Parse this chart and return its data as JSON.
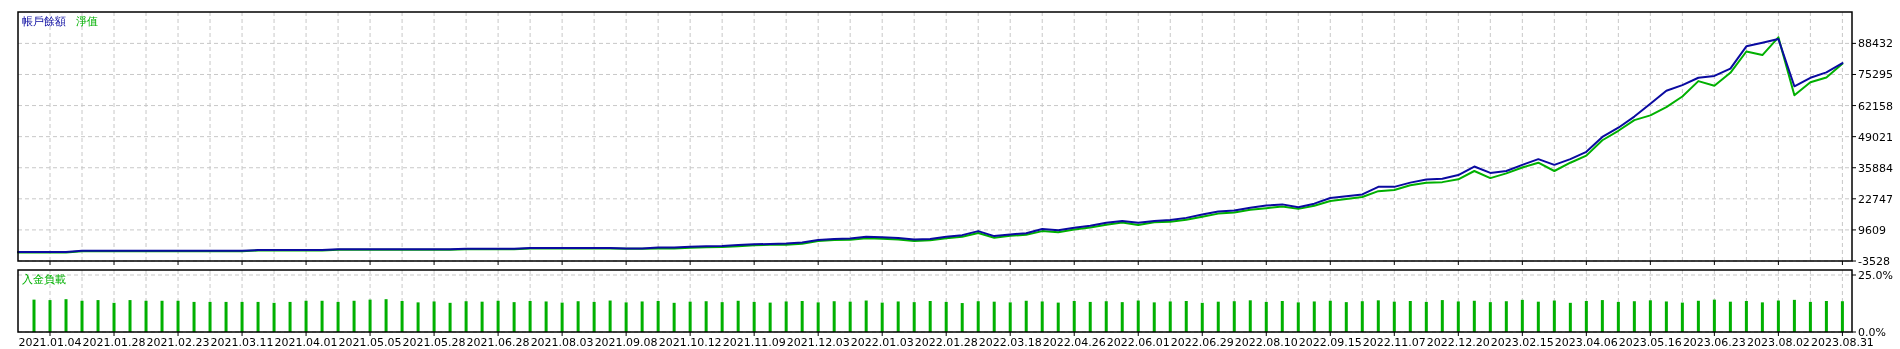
{
  "chart_data": [
    {
      "type": "line",
      "tick_labels": "y",
      "grid": true,
      "legend": "top left",
      "categories": [
        null,
        null,
        "2021.01.04",
        null,
        null,
        null,
        "2021.01.28",
        null,
        null,
        null,
        "2021.02.23",
        null,
        null,
        null,
        "2021.03.11",
        null,
        null,
        null,
        "2021.04.01",
        null,
        null,
        null,
        "2021.05.05",
        null,
        null,
        null,
        "2021.05.28",
        null,
        null,
        null,
        "2021.06.28",
        null,
        null,
        null,
        "2021.08.03",
        null,
        null,
        null,
        "2021.09.08",
        null,
        null,
        null,
        "2021.10.12",
        null,
        null,
        null,
        "2021.11.09",
        null,
        null,
        null,
        "2021.12.03",
        null,
        null,
        null,
        "2022.01.03",
        null,
        null,
        null,
        "2022.01.28",
        null,
        null,
        null,
        "2022.03.18",
        null,
        null,
        null,
        "2022.04.26",
        null,
        null,
        null,
        "2022.06.01",
        null,
        null,
        null,
        "2022.06.29",
        null,
        null,
        null,
        "2022.08.10",
        null,
        null,
        null,
        "2022.09.15",
        null,
        null,
        null,
        "2022.11.07",
        null,
        null,
        null,
        "2022.12.20",
        null,
        null,
        null,
        "2023.02.15",
        null,
        null,
        null,
        "2023.04.06",
        null,
        null,
        null,
        "2023.05.16",
        null,
        null,
        null,
        "2023.06.23",
        null,
        null,
        null,
        "2023.08.02",
        null,
        null,
        null,
        "2023.08.31"
      ],
      "ylim": [
        -3528,
        101700
      ],
      "yticks": [
        -3528,
        9609,
        22747,
        35884,
        49021,
        62158,
        75295,
        88432
      ],
      "series": [
        {
          "name": "帳戶餘額",
          "color": "#0a0aa0",
          "values": [
            300,
            300,
            300,
            300,
            800,
            800,
            800,
            800,
            800,
            800,
            800,
            800,
            800,
            800,
            800,
            1100,
            1100,
            1100,
            1100,
            1100,
            1400,
            1400,
            1400,
            1400,
            1400,
            1400,
            1400,
            1400,
            1600,
            1600,
            1600,
            1600,
            2000,
            2000,
            2000,
            2000,
            2000,
            2000,
            1800,
            1800,
            2200,
            2200,
            2500,
            2700,
            2800,
            3200,
            3500,
            3700,
            3900,
            4300,
            5300,
            5800,
            6000,
            6700,
            6500,
            6200,
            5600,
            5800,
            6700,
            7400,
            9100,
            7000,
            7700,
            8200,
            10000,
            9500,
            10500,
            11400,
            12600,
            13400,
            12600,
            13400,
            13800,
            14700,
            16100,
            17400,
            17800,
            19000,
            19900,
            20400,
            19200,
            20700,
            23100,
            23800,
            24600,
            27800,
            27800,
            29600,
            30900,
            31200,
            32800,
            36400,
            33700,
            34500,
            37100,
            39500,
            37100,
            39500,
            42600,
            48900,
            52800,
            57500,
            62900,
            68400,
            70800,
            73900,
            74700,
            77800,
            87200,
            88700,
            90300,
            70300,
            73900,
            76200,
            80100
          ]
        },
        {
          "name": "淨值",
          "color": "#00b000",
          "values": [
            100,
            100,
            100,
            100,
            600,
            600,
            600,
            600,
            600,
            600,
            600,
            600,
            600,
            600,
            600,
            900,
            900,
            900,
            900,
            900,
            1200,
            1200,
            1200,
            1200,
            1200,
            1200,
            1200,
            1200,
            1400,
            1400,
            1400,
            1400,
            1800,
            1800,
            1800,
            1800,
            1800,
            1800,
            1600,
            1600,
            1800,
            1800,
            2100,
            2300,
            2400,
            2700,
            3100,
            3300,
            3300,
            3800,
            4900,
            5300,
            5400,
            6100,
            5900,
            5600,
            4900,
            5200,
            6100,
            6700,
            8300,
            6300,
            7100,
            7600,
            9100,
            8600,
            9800,
            10600,
            11800,
            12700,
            11700,
            12800,
            13100,
            13900,
            15200,
            16500,
            17000,
            18100,
            18800,
            19500,
            18500,
            19800,
            21800,
            22700,
            23500,
            26000,
            26500,
            28500,
            29500,
            29800,
            31000,
            34500,
            31500,
            33500,
            36000,
            38000,
            34500,
            38000,
            41000,
            47500,
            51500,
            56000,
            58000,
            61500,
            66000,
            72500,
            70500,
            76000,
            85000,
            83500,
            91000,
            66500,
            72000,
            74000,
            79800
          ]
        }
      ]
    },
    {
      "type": "bar",
      "grid": true,
      "legend": "top left",
      "categories": [
        null,
        null,
        "2021.01.04",
        null,
        null,
        null,
        "2021.01.28",
        null,
        null,
        null,
        "2021.02.23",
        null,
        null,
        null,
        "2021.03.11",
        null,
        null,
        null,
        "2021.04.01",
        null,
        null,
        null,
        "2021.05.05",
        null,
        null,
        null,
        "2021.05.28",
        null,
        null,
        null,
        "2021.06.28",
        null,
        null,
        null,
        "2021.08.03",
        null,
        null,
        null,
        "2021.09.08",
        null,
        null,
        null,
        "2021.10.12",
        null,
        null,
        null,
        "2021.11.09",
        null,
        null,
        null,
        "2021.12.03",
        null,
        null,
        null,
        "2022.01.03",
        null,
        null,
        null,
        "2022.01.28",
        null,
        null,
        null,
        "2022.03.18",
        null,
        null,
        null,
        "2022.04.26",
        null,
        null,
        null,
        "2022.06.01",
        null,
        null,
        null,
        "2022.06.29",
        null,
        null,
        null,
        "2022.08.10",
        null,
        null,
        null,
        "2022.09.15",
        null,
        null,
        null,
        "2022.11.07",
        null,
        null,
        null,
        "2022.12.20",
        null,
        null,
        null,
        "2023.02.15",
        null,
        null,
        null,
        "2023.04.06",
        null,
        null,
        null,
        "2023.05.16",
        null,
        null,
        null,
        "2023.06.23",
        null,
        null,
        null,
        "2023.08.02",
        null,
        null,
        null,
        "2023.08.31"
      ],
      "ylim": [
        0,
        27.2
      ],
      "yticks": [
        {
          "value": 0,
          "label": "0.0%"
        },
        {
          "value": 25,
          "label": "25.0%"
        }
      ],
      "series": [
        {
          "name": "入金負載",
          "color": "#00b000",
          "values": [
            null,
            14.2,
            14.0,
            14.4,
            13.7,
            14.0,
            12.8,
            14.0,
            13.7,
            13.7,
            13.7,
            13.2,
            13.2,
            13.2,
            13.2,
            13.2,
            12.8,
            13.2,
            13.7,
            13.7,
            13.2,
            13.7,
            14.2,
            14.4,
            13.6,
            13.0,
            13.4,
            12.8,
            13.5,
            13.3,
            13.7,
            13.1,
            13.6,
            13.4,
            12.9,
            13.5,
            13.2,
            13.8,
            13.0,
            13.4,
            13.6,
            12.8,
            13.3,
            13.5,
            13.1,
            13.7,
            13.2,
            12.9,
            13.4,
            13.6,
            13.0,
            13.5,
            13.3,
            13.8,
            12.9,
            13.4,
            13.1,
            13.6,
            13.2,
            12.7,
            13.5,
            13.3,
            13.0,
            13.7,
            13.4,
            12.9,
            13.6,
            13.2,
            13.5,
            13.1,
            13.8,
            13.0,
            13.4,
            13.6,
            12.8,
            13.3,
            13.5,
            13.9,
            13.2,
            13.6,
            13.0,
            13.4,
            13.7,
            13.1,
            13.5,
            13.9,
            13.3,
            13.6,
            13.2,
            14.0,
            13.4,
            13.7,
            13.1,
            13.5,
            14.1,
            13.3,
            13.8,
            12.8,
            13.6,
            14.0,
            13.2,
            13.5,
            13.9,
            13.4,
            12.9,
            13.7,
            14.2,
            13.3,
            13.6,
            13.0,
            13.8,
            14.1,
            13.2,
            13.6,
            13.5
          ]
        }
      ]
    }
  ]
}
